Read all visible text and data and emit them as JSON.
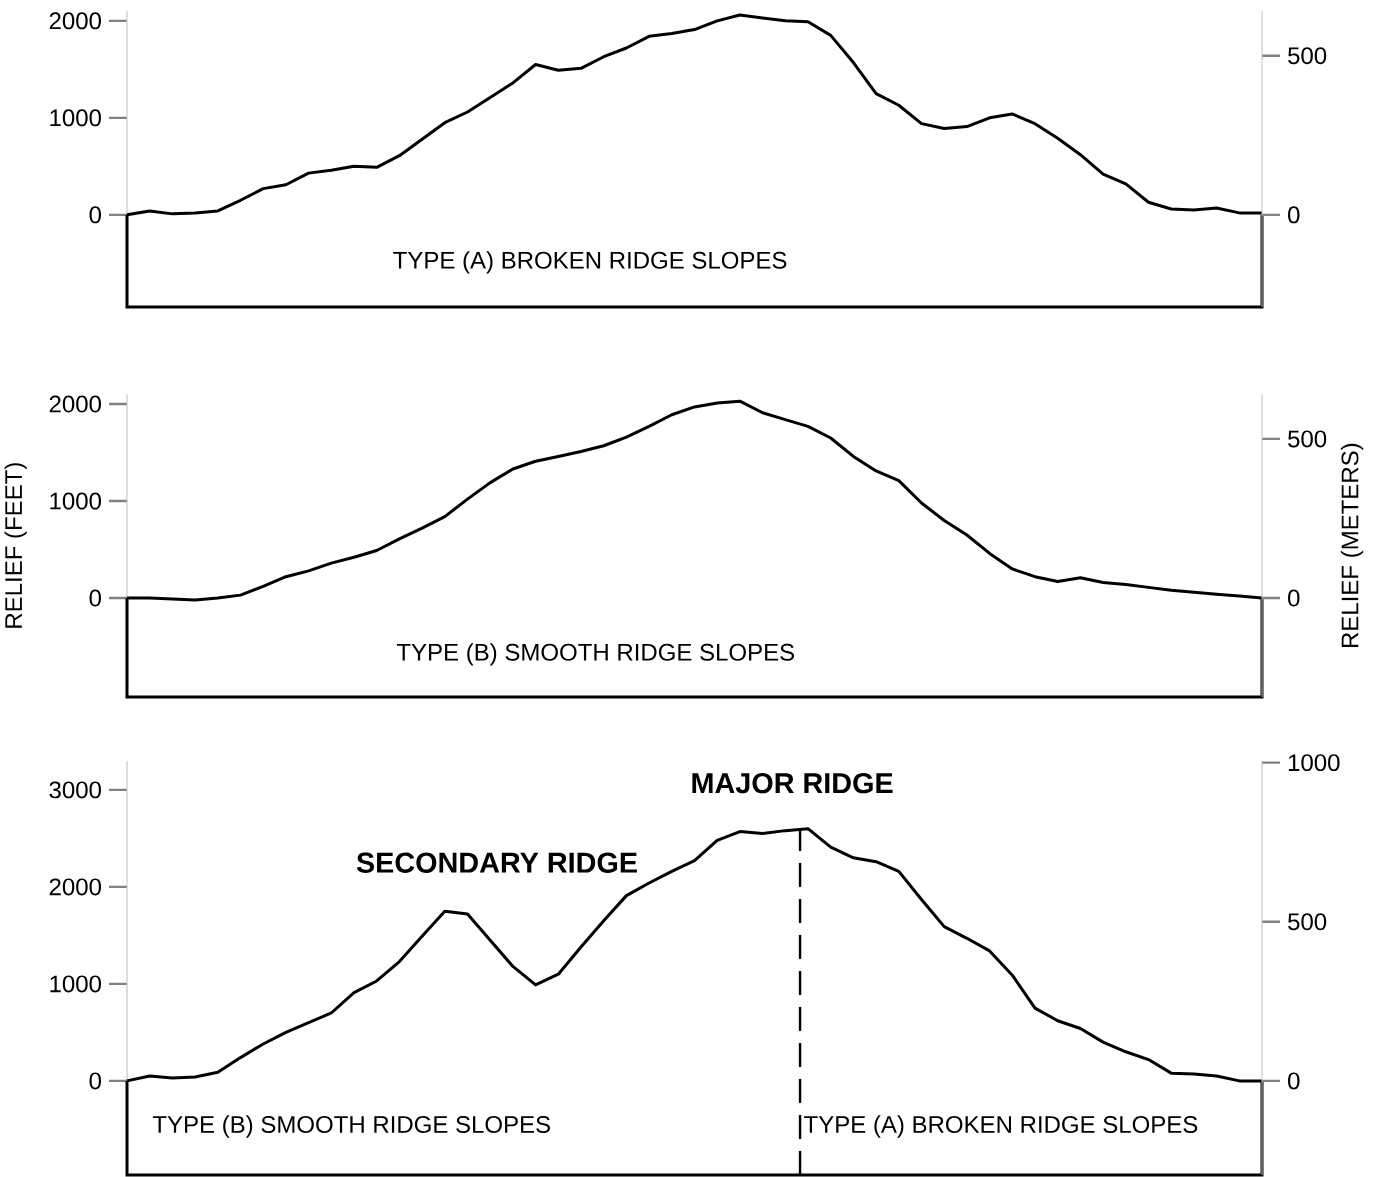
{
  "chart_data": [
    {
      "type": "line",
      "categories": [
        null,
        null,
        null,
        null,
        null,
        null,
        null,
        null,
        null,
        null,
        null,
        null,
        null,
        null,
        null,
        null,
        null,
        null,
        null,
        null,
        null,
        null,
        null,
        null,
        null,
        null,
        null,
        null,
        null,
        null,
        null,
        null,
        null,
        null,
        null,
        null,
        null,
        null,
        null,
        null,
        null,
        null,
        null,
        null,
        null,
        null,
        null,
        null,
        null,
        null,
        null
      ],
      "ylim": [
        -950,
        2100
      ],
      "yticks": [
        0,
        1000,
        2000
      ],
      "y2lim": [
        -289.5,
        640.0
      ],
      "y2ticks": [
        0,
        500
      ],
      "tick_labels": "y",
      "marker": "none",
      "line_style": "solid",
      "annotations": [
        "TYPE (A)   BROKEN RIDGE SLOPES"
      ],
      "series": [
        {
          "color": "#000000",
          "values": [
            0,
            40,
            10,
            20,
            40,
            150,
            270,
            310,
            430,
            460,
            500,
            490,
            610,
            780,
            950,
            1060,
            1210,
            1360,
            1550,
            1490,
            1510,
            1630,
            1720,
            1840,
            1870,
            1910,
            2000,
            2060,
            2030,
            2000,
            1990,
            1850,
            1570,
            1250,
            1130,
            940,
            890,
            910,
            1000,
            1040,
            940,
            790,
            620,
            420,
            320,
            130,
            60,
            50,
            70,
            20,
            20
          ]
        }
      ]
    },
    {
      "type": "line",
      "categories": [
        null,
        null,
        null,
        null,
        null,
        null,
        null,
        null,
        null,
        null,
        null,
        null,
        null,
        null,
        null,
        null,
        null,
        null,
        null,
        null,
        null,
        null,
        null,
        null,
        null,
        null,
        null,
        null,
        null,
        null,
        null,
        null,
        null,
        null,
        null,
        null,
        null,
        null,
        null,
        null,
        null,
        null,
        null,
        null,
        null,
        null,
        null,
        null,
        null,
        null,
        null
      ],
      "ylim": [
        -1020,
        2100
      ],
      "yticks": [
        0,
        1000,
        2000
      ],
      "y2lim": [
        -310.9,
        640.0
      ],
      "y2ticks": [
        0,
        500
      ],
      "tick_labels": "y",
      "marker": "none",
      "line_style": "solid",
      "ylabel": "RELIEF (FEET)",
      "y2label": "RELIEF (METERS)",
      "annotations": [
        "TYPE (B)   SMOOTH RIDGE SLOPES"
      ],
      "series": [
        {
          "color": "#000000",
          "values": [
            0,
            0,
            -10,
            -20,
            0,
            30,
            120,
            220,
            280,
            360,
            420,
            490,
            610,
            720,
            840,
            1020,
            1190,
            1330,
            1410,
            1460,
            1510,
            1570,
            1660,
            1770,
            1890,
            1970,
            2010,
            2030,
            1910,
            1840,
            1770,
            1650,
            1460,
            1310,
            1210,
            980,
            800,
            650,
            460,
            300,
            220,
            170,
            210,
            160,
            140,
            110,
            80,
            60,
            40,
            20,
            0
          ]
        }
      ]
    },
    {
      "type": "line",
      "categories": [
        null,
        null,
        null,
        null,
        null,
        null,
        null,
        null,
        null,
        null,
        null,
        null,
        null,
        null,
        null,
        null,
        null,
        null,
        null,
        null,
        null,
        null,
        null,
        null,
        null,
        null,
        null,
        null,
        null,
        null,
        null,
        null,
        null,
        null,
        null,
        null,
        null,
        null,
        null,
        null,
        null,
        null,
        null,
        null,
        null,
        null,
        null,
        null,
        null,
        null,
        null
      ],
      "ylim": [
        -970,
        3300
      ],
      "yticks": [
        0,
        1000,
        2000,
        3000
      ],
      "y2lim": [
        -295.6,
        1005.8
      ],
      "y2ticks": [
        0,
        500,
        1000
      ],
      "tick_labels": "y",
      "marker": "none",
      "line_style": "solid",
      "annotations": [
        "MAJOR RIDGE",
        "SECONDARY RIDGE",
        "TYPE (B) SMOOTH RIDGE SLOPES",
        "TYPE (A) BROKEN RIDGE SLOPES"
      ],
      "series": [
        {
          "color": "#000000",
          "values": [
            0,
            50,
            30,
            40,
            90,
            240,
            380,
            500,
            600,
            700,
            910,
            1030,
            1230,
            1490,
            1750,
            1720,
            1450,
            1180,
            990,
            1100,
            1380,
            1650,
            1910,
            2040,
            2160,
            2270,
            2480,
            2570,
            2550,
            2580,
            2600,
            2410,
            2300,
            2260,
            2160,
            1870,
            1590,
            1470,
            1340,
            1090,
            750,
            620,
            540,
            400,
            300,
            220,
            80,
            70,
            50,
            0,
            0
          ]
        }
      ]
    }
  ]
}
